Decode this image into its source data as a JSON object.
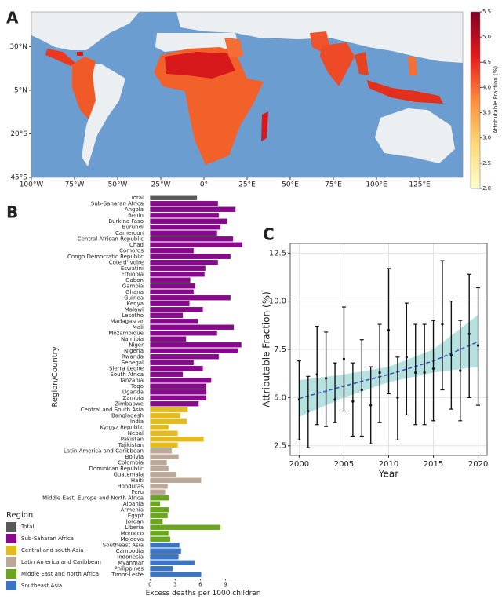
{
  "chart_data": [
    {
      "type": "map",
      "panel_label": "A",
      "xlim": [
        -100,
        150
      ],
      "ylim": [
        -45,
        50
      ],
      "xticks": [
        {
          "value": -100,
          "label": "100°W"
        },
        {
          "value": -75,
          "label": "75°W"
        },
        {
          "value": -50,
          "label": "50°W"
        },
        {
          "value": -25,
          "label": "25°W"
        },
        {
          "value": 0,
          "label": "0°"
        },
        {
          "value": 25,
          "label": "25°E"
        },
        {
          "value": 50,
          "label": "50°E"
        },
        {
          "value": 75,
          "label": "75°E"
        },
        {
          "value": 100,
          "label": "100°E"
        },
        {
          "value": 125,
          "label": "125°E"
        }
      ],
      "yticks": [
        {
          "value": 30,
          "label": "30°N"
        },
        {
          "value": 5,
          "label": "5°N"
        },
        {
          "value": -20,
          "label": "20°S"
        },
        {
          "value": -45,
          "label": "45°S"
        }
      ],
      "colorbar": {
        "label": "Attributable Fraction (%)",
        "lim": [
          2.0,
          5.5
        ],
        "ticks": [
          {
            "value": 2.0,
            "label": "2.0"
          },
          {
            "value": 2.5,
            "label": "2.5"
          },
          {
            "value": 3.0,
            "label": "3.0"
          },
          {
            "value": 3.5,
            "label": "3.5"
          },
          {
            "value": 4.0,
            "label": "4.0"
          },
          {
            "value": 4.5,
            "label": "4.5"
          },
          {
            "value": 5.0,
            "label": "5.0"
          },
          {
            "value": 5.5,
            "label": "5.5"
          }
        ],
        "colors": [
          "#ffffcc",
          "#fed976",
          "#fd8d3c",
          "#e31a1c",
          "#800026"
        ]
      }
    },
    {
      "type": "barh",
      "panel_label": "B",
      "xlabel": "Excess deaths per 1000 children",
      "ylabel": "Region/Country",
      "xlim": [
        -0.5,
        11.3
      ],
      "xticks": [
        0,
        3,
        6,
        9
      ],
      "categories": [
        "Total",
        "Sub-Saharan Africa",
        "Angola",
        "Benin",
        "Burkina Faso",
        "Burundi",
        "Cameroon",
        "Central African Republic",
        "Chad",
        "Comoros",
        "Congo Democratic Republic",
        "Cote d'Ivoire",
        "Eswatini",
        "Ethiopia",
        "Gabon",
        "Gambia",
        "Ghana",
        "Guinea",
        "Kenya",
        "Malawi",
        "Lesotho",
        "Madagascar",
        "Mali",
        "Mozambique",
        "Namibia",
        "Niger",
        "Nigeria",
        "Rwanda",
        "Senegal",
        "Sierra Leone",
        "South Africa",
        "Tanzania",
        "Togo",
        "Uganda",
        "Zambia",
        "Zimbabwe",
        "Central and South Asia",
        "Bangladesh",
        "India",
        "Kyrgyz Republic",
        "Nepal",
        "Pakistan",
        "Tajikistan",
        "Latin America and Caribbean",
        "Bolivia",
        "Colombia",
        "Dominican Republic",
        "Guatemala",
        "Haiti",
        "Honduras",
        "Peru",
        "Middle East, Europe and North Africa",
        "Albania",
        "Armenia",
        "Egypt",
        "Jordan",
        "Liberia",
        "Morocco",
        "Moldova",
        "Southeast Asia",
        "Cambodia",
        "Indonesia",
        "Myanmar",
        "Philippines",
        "Timor-Leste"
      ],
      "values": [
        5.6,
        8.1,
        10.2,
        8.2,
        9.2,
        8.4,
        8.0,
        9.9,
        11.0,
        5.2,
        9.6,
        8.1,
        6.6,
        6.5,
        4.8,
        5.4,
        5.2,
        9.6,
        4.7,
        6.3,
        3.9,
        5.7,
        10.0,
        8.0,
        4.3,
        10.9,
        10.5,
        8.2,
        5.2,
        6.3,
        3.9,
        7.3,
        6.7,
        6.7,
        6.7,
        5.8,
        4.5,
        3.6,
        4.4,
        2.2,
        3.3,
        6.4,
        3.3,
        2.6,
        3.4,
        2.0,
        2.2,
        3.1,
        6.1,
        2.1,
        1.8,
        2.3,
        1.2,
        2.3,
        2.1,
        1.5,
        8.4,
        2.2,
        2.4,
        3.5,
        3.7,
        3.4,
        5.3,
        2.7,
        6.1
      ],
      "colors": [
        "#595959",
        "#880a8c",
        "#880a8c",
        "#880a8c",
        "#880a8c",
        "#880a8c",
        "#880a8c",
        "#880a8c",
        "#880a8c",
        "#880a8c",
        "#880a8c",
        "#880a8c",
        "#880a8c",
        "#880a8c",
        "#880a8c",
        "#880a8c",
        "#880a8c",
        "#880a8c",
        "#880a8c",
        "#880a8c",
        "#880a8c",
        "#880a8c",
        "#880a8c",
        "#880a8c",
        "#880a8c",
        "#880a8c",
        "#880a8c",
        "#880a8c",
        "#880a8c",
        "#880a8c",
        "#880a8c",
        "#880a8c",
        "#880a8c",
        "#880a8c",
        "#880a8c",
        "#880a8c",
        "#e3bb1e",
        "#e3bb1e",
        "#e3bb1e",
        "#e3bb1e",
        "#e3bb1e",
        "#e3bb1e",
        "#e3bb1e",
        "#bba899",
        "#bba899",
        "#bba899",
        "#bba899",
        "#bba899",
        "#bba899",
        "#bba899",
        "#bba899",
        "#6aa51e",
        "#6aa51e",
        "#6aa51e",
        "#6aa51e",
        "#6aa51e",
        "#6aa51e",
        "#6aa51e",
        "#6aa51e",
        "#3a74c2",
        "#3a74c2",
        "#3a74c2",
        "#3a74c2",
        "#3a74c2",
        "#3a74c2"
      ],
      "legend": {
        "title": "Region",
        "items": [
          {
            "name": "Total",
            "color": "#595959"
          },
          {
            "name": "Sub-Saharan Africa",
            "color": "#880a8c"
          },
          {
            "name": "Central and south Asia",
            "color": "#e3bb1e"
          },
          {
            "name": "Latin America and Caribbean",
            "color": "#bba899"
          },
          {
            "name": "Middle East and north Africa",
            "color": "#6aa51e"
          },
          {
            "name": "Southeast Asia",
            "color": "#3a74c2"
          }
        ]
      }
    },
    {
      "type": "errorbar",
      "panel_label": "C",
      "xlabel": "Year",
      "ylabel": "Attributable Fraction (%)",
      "xlim": [
        1999,
        2021
      ],
      "ylim": [
        2.0,
        13.0
      ],
      "xticks": [
        2000,
        2005,
        2010,
        2015,
        2020
      ],
      "yticks": [
        {
          "value": 2.5,
          "label": "2.5"
        },
        {
          "value": 5.0,
          "label": "5.0"
        },
        {
          "value": 7.5,
          "label": "7.5"
        },
        {
          "value": 10.0,
          "label": "10.0"
        },
        {
          "value": 12.5,
          "label": "12.5"
        }
      ],
      "grid": true,
      "x": [
        2000,
        2001,
        2002,
        2003,
        2004,
        2005,
        2006,
        2007,
        2008,
        2009,
        2010,
        2011,
        2012,
        2013,
        2014,
        2015,
        2016,
        2017,
        2018,
        2019,
        2020
      ],
      "values": [
        4.9,
        4.3,
        6.2,
        6.0,
        4.9,
        7.0,
        4.8,
        5.4,
        4.6,
        6.3,
        8.5,
        5.0,
        7.1,
        6.3,
        6.3,
        6.5,
        8.8,
        7.2,
        6.4,
        8.3,
        7.7
      ],
      "lower": [
        2.8,
        2.4,
        3.6,
        3.5,
        3.7,
        4.3,
        3.0,
        3.0,
        2.6,
        3.7,
        5.2,
        2.8,
        4.1,
        3.6,
        3.6,
        3.8,
        5.4,
        4.4,
        3.8,
        5.0,
        4.6
      ],
      "upper": [
        6.9,
        6.1,
        8.7,
        8.4,
        6.8,
        9.7,
        6.8,
        8.0,
        6.6,
        8.8,
        11.7,
        7.1,
        9.9,
        8.8,
        8.8,
        9.0,
        12.1,
        10.0,
        9.0,
        11.4,
        10.7
      ],
      "color": "#111111",
      "trend": {
        "x": [
          2000,
          2005,
          2010,
          2015,
          2020
        ],
        "values": [
          4.95,
          5.6,
          6.2,
          6.9,
          7.9
        ],
        "lower": [
          4.0,
          5.0,
          5.8,
          6.3,
          6.6
        ],
        "upper": [
          5.9,
          6.2,
          6.6,
          7.5,
          9.3
        ],
        "color": "#3b5bc4",
        "band_color": "#a8dcdc"
      }
    }
  ]
}
